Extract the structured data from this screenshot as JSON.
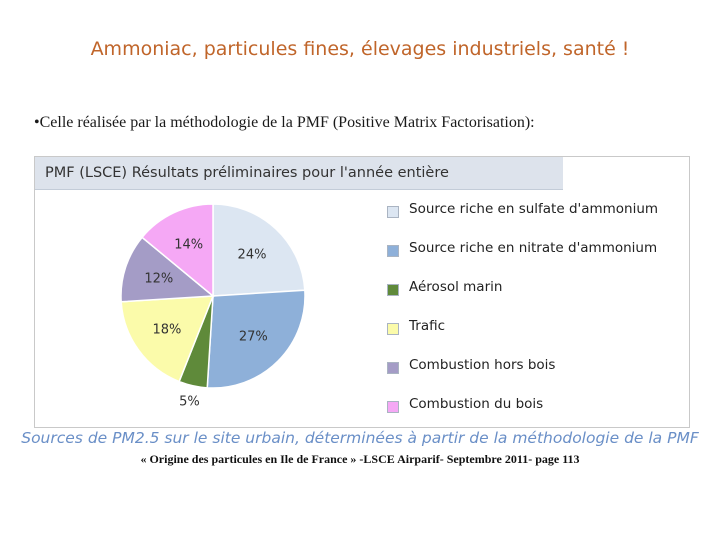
{
  "slide": {
    "title": "Ammoniac, particules fines, élevages industriels, santé !",
    "bullet": "•Celle réalisée par la méthodologie de la PMF (Positive Matrix Factorisation):",
    "caption": "Sources de PM2.5 sur le site urbain, déterminées à partir de la méthodologie de la PMF",
    "source": "« Origine des particules en Ile de France » -LSCE Airparif- Septembre 2011- page 113"
  },
  "chart_data": {
    "type": "pie",
    "title": "PMF (LSCE) Résultats préliminaires pour l'année entière",
    "slices": [
      {
        "label": "Source riche en sulfate d'ammonium",
        "value": 24,
        "value_label": "24%",
        "color": "#dce6f2"
      },
      {
        "label": "Source riche en nitrate d'ammonium",
        "value": 27,
        "value_label": "27%",
        "color": "#8eb0d9"
      },
      {
        "label": "Aérosol marin",
        "value": 5,
        "value_label": "5%",
        "color": "#5f8a3a"
      },
      {
        "label": "Trafic",
        "value": 18,
        "value_label": "18%",
        "color": "#fbfbaa"
      },
      {
        "label": "Combustion hors bois",
        "value": 12,
        "value_label": "12%",
        "color": "#a49cc6"
      },
      {
        "label": "Combustion du bois",
        "value": 14,
        "value_label": "14%",
        "color": "#f5a8f5"
      }
    ],
    "legend_position": "right"
  }
}
